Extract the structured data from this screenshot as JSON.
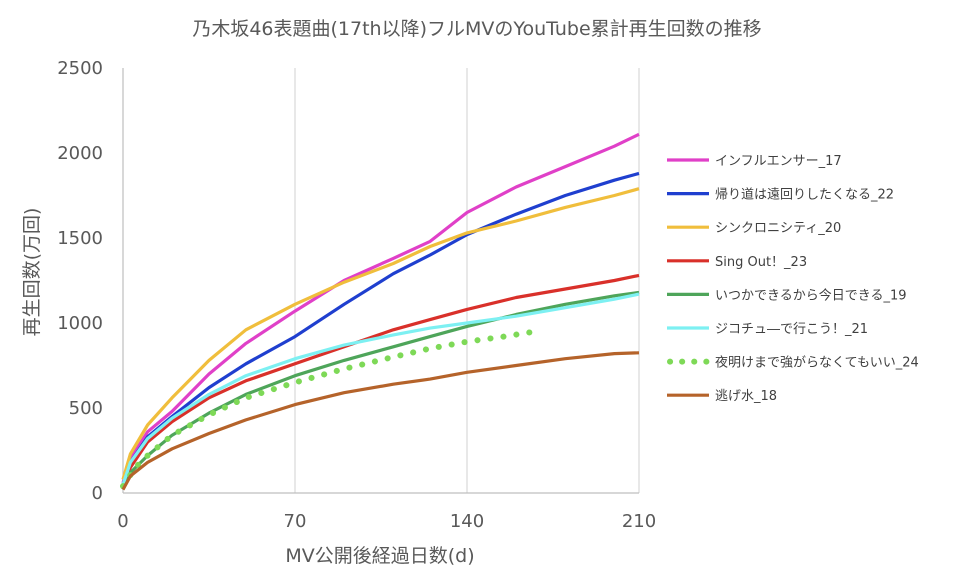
{
  "chart_data": {
    "type": "line",
    "title": "乃木坂46表題曲(17th以降)フルMVのYouTube累計再生回数の推移",
    "xlabel": "MV公開後経過日数(d)",
    "ylabel": "再生回数(万回)",
    "xlim": [
      0,
      210
    ],
    "ylim": [
      0,
      2500
    ],
    "xticks": [
      0,
      70,
      140,
      210
    ],
    "yticks": [
      0,
      500,
      1000,
      1500,
      2000,
      2500
    ],
    "grid": "vertical",
    "legend_position": "right",
    "series": [
      {
        "name": "インフルエンサー_17",
        "color": "#e040c8",
        "style": "solid",
        "points": [
          [
            0,
            60
          ],
          [
            3,
            200
          ],
          [
            10,
            360
          ],
          [
            20,
            480
          ],
          [
            35,
            700
          ],
          [
            50,
            880
          ],
          [
            70,
            1070
          ],
          [
            90,
            1250
          ],
          [
            110,
            1380
          ],
          [
            125,
            1480
          ],
          [
            140,
            1650
          ],
          [
            160,
            1800
          ],
          [
            180,
            1920
          ],
          [
            200,
            2040
          ],
          [
            210,
            2110
          ]
        ]
      },
      {
        "name": "帰り道は遠回りしたくなる_22",
        "color": "#1f3fcf",
        "style": "solid",
        "points": [
          [
            0,
            50
          ],
          [
            3,
            180
          ],
          [
            10,
            330
          ],
          [
            20,
            450
          ],
          [
            35,
            620
          ],
          [
            50,
            760
          ],
          [
            70,
            920
          ],
          [
            90,
            1110
          ],
          [
            110,
            1290
          ],
          [
            125,
            1400
          ],
          [
            140,
            1520
          ],
          [
            160,
            1640
          ],
          [
            180,
            1750
          ],
          [
            200,
            1840
          ],
          [
            210,
            1880
          ]
        ]
      },
      {
        "name": "シンクロニシティ_20",
        "color": "#f0be3c",
        "style": "solid",
        "points": [
          [
            0,
            80
          ],
          [
            3,
            230
          ],
          [
            10,
            400
          ],
          [
            20,
            560
          ],
          [
            35,
            780
          ],
          [
            50,
            960
          ],
          [
            70,
            1110
          ],
          [
            90,
            1240
          ],
          [
            110,
            1350
          ],
          [
            125,
            1450
          ],
          [
            140,
            1530
          ],
          [
            160,
            1600
          ],
          [
            180,
            1680
          ],
          [
            200,
            1750
          ],
          [
            210,
            1790
          ]
        ]
      },
      {
        "name": "Sing Out！_23",
        "color": "#d9302a",
        "style": "solid",
        "points": [
          [
            0,
            40
          ],
          [
            3,
            150
          ],
          [
            10,
            300
          ],
          [
            20,
            420
          ],
          [
            35,
            560
          ],
          [
            50,
            660
          ],
          [
            70,
            760
          ],
          [
            90,
            860
          ],
          [
            110,
            960
          ],
          [
            125,
            1020
          ],
          [
            140,
            1080
          ],
          [
            160,
            1150
          ],
          [
            180,
            1200
          ],
          [
            200,
            1250
          ],
          [
            210,
            1280
          ]
        ]
      },
      {
        "name": "いつかできるから今日できる_19",
        "color": "#4ea55a",
        "style": "solid",
        "points": [
          [
            0,
            30
          ],
          [
            3,
            120
          ],
          [
            10,
            220
          ],
          [
            20,
            340
          ],
          [
            35,
            470
          ],
          [
            50,
            580
          ],
          [
            70,
            690
          ],
          [
            90,
            780
          ],
          [
            110,
            860
          ],
          [
            125,
            920
          ],
          [
            140,
            980
          ],
          [
            160,
            1050
          ],
          [
            180,
            1110
          ],
          [
            200,
            1160
          ],
          [
            210,
            1180
          ]
        ]
      },
      {
        "name": "ジコチュ―で行こう！_21",
        "color": "#7df0f2",
        "style": "solid",
        "points": [
          [
            0,
            50
          ],
          [
            3,
            180
          ],
          [
            10,
            320
          ],
          [
            20,
            440
          ],
          [
            35,
            580
          ],
          [
            50,
            690
          ],
          [
            70,
            790
          ],
          [
            90,
            870
          ],
          [
            110,
            930
          ],
          [
            125,
            970
          ],
          [
            140,
            1000
          ],
          [
            160,
            1040
          ],
          [
            180,
            1090
          ],
          [
            200,
            1140
          ],
          [
            210,
            1170
          ]
        ]
      },
      {
        "name": "夜明けまで強がらなくてもいい_24",
        "color": "#7ed957",
        "style": "dotted",
        "points": [
          [
            0,
            40
          ],
          [
            5,
            150
          ],
          [
            10,
            220
          ],
          [
            20,
            340
          ],
          [
            35,
            460
          ],
          [
            50,
            560
          ],
          [
            70,
            650
          ],
          [
            90,
            730
          ],
          [
            110,
            800
          ],
          [
            125,
            850
          ],
          [
            140,
            890
          ],
          [
            155,
            920
          ],
          [
            170,
            955
          ]
        ]
      },
      {
        "name": "逃げ水_18",
        "color": "#b5632a",
        "style": "solid",
        "points": [
          [
            0,
            20
          ],
          [
            3,
            100
          ],
          [
            10,
            180
          ],
          [
            20,
            260
          ],
          [
            35,
            350
          ],
          [
            50,
            430
          ],
          [
            70,
            520
          ],
          [
            90,
            590
          ],
          [
            110,
            640
          ],
          [
            125,
            670
          ],
          [
            140,
            710
          ],
          [
            160,
            750
          ],
          [
            180,
            790
          ],
          [
            200,
            820
          ],
          [
            210,
            825
          ]
        ]
      }
    ]
  }
}
